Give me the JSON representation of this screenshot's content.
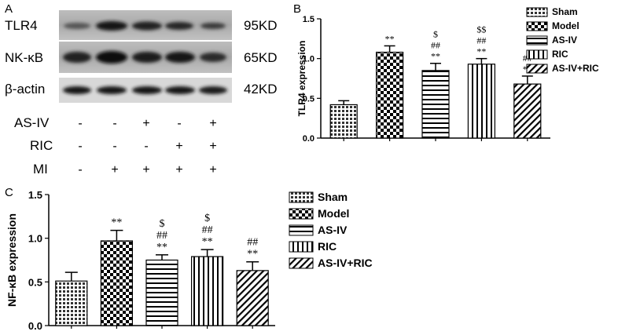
{
  "figure": {
    "panel_labels": [
      "A",
      "B",
      "C"
    ],
    "blot": {
      "rows": [
        {
          "label": "TLR4",
          "size": "95KD"
        },
        {
          "label": "NK-κB",
          "size": "65KD"
        },
        {
          "label": "β-actin",
          "size": "42KD"
        }
      ],
      "treatments": [
        {
          "label": "AS-IV",
          "signs": [
            "-",
            "-",
            "+",
            "-",
            "+"
          ]
        },
        {
          "label": "RIC",
          "signs": [
            "-",
            "-",
            "-",
            "+",
            "+"
          ]
        },
        {
          "label": "MI",
          "signs": [
            "-",
            "+",
            "+",
            "+",
            "+"
          ]
        }
      ]
    }
  },
  "chart_data": [
    {
      "panel": "B",
      "type": "bar",
      "categories": [
        "Sham",
        "Model",
        "AS-IV",
        "RIC",
        "AS-IV+RIC"
      ],
      "values": [
        0.42,
        1.08,
        0.85,
        0.93,
        0.68
      ],
      "errors": [
        0.05,
        0.08,
        0.09,
        0.07,
        0.1
      ],
      "significance": [
        [],
        [
          "**"
        ],
        [
          "$",
          "##",
          "**"
        ],
        [
          "$$",
          "##",
          "**"
        ],
        [
          "##",
          "**"
        ]
      ],
      "ylabel": "TLR4 expression",
      "ylim": [
        0.0,
        1.5
      ],
      "yticks": [
        "0.0",
        "0.5",
        "1.0",
        "1.5"
      ],
      "legend": [
        "Sham",
        "Model",
        "AS-IV",
        "RIC",
        "AS-IV+RIC"
      ],
      "legend_position": "right",
      "grid": false
    },
    {
      "panel": "C",
      "type": "bar",
      "categories": [
        "Sham",
        "Model",
        "AS-IV",
        "RIC",
        "AS-IV+RIC"
      ],
      "values": [
        0.51,
        0.97,
        0.75,
        0.79,
        0.63
      ],
      "errors": [
        0.1,
        0.12,
        0.06,
        0.08,
        0.1
      ],
      "significance": [
        [],
        [
          "**"
        ],
        [
          "$",
          "##",
          "**"
        ],
        [
          "$",
          "##",
          "**"
        ],
        [
          "##",
          "**"
        ]
      ],
      "ylabel": "NF-κB expression",
      "ylim": [
        0.0,
        1.5
      ],
      "yticks": [
        "0.0",
        "0.5",
        "1.0",
        "1.5"
      ],
      "legend": [
        "Sham",
        "Model",
        "AS-IV",
        "RIC",
        "AS-IV+RIC"
      ],
      "legend_position": "right",
      "grid": false
    }
  ]
}
